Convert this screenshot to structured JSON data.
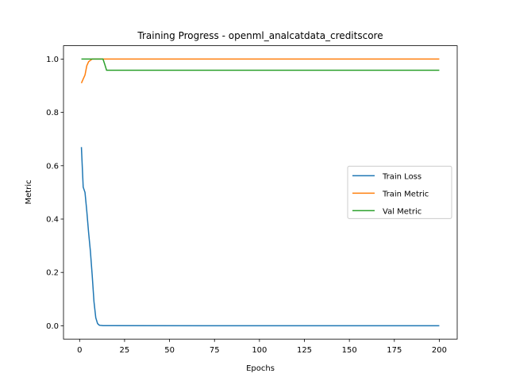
{
  "chart_data": {
    "type": "line",
    "title": "Training Progress - openml_analcatdata_creditscore",
    "x_label": "Epochs",
    "y_label": "Metric",
    "x": [
      1,
      2,
      3,
      4,
      5,
      6,
      7,
      8,
      9,
      10,
      11,
      12,
      13,
      14,
      15,
      200
    ],
    "series": [
      {
        "name": "Train Loss",
        "color": "#1f77b4",
        "values": [
          0.67,
          0.52,
          0.5,
          0.43,
          0.35,
          0.28,
          0.19,
          0.09,
          0.03,
          0.008,
          0.002,
          0.001,
          0.0005,
          0.0004,
          0.0003,
          0.0001
        ]
      },
      {
        "name": "Train Metric",
        "color": "#ff7f0e",
        "values": [
          0.91,
          0.925,
          0.94,
          0.975,
          0.99,
          0.995,
          1,
          1,
          1,
          1,
          1,
          1,
          1,
          1,
          1,
          1
        ]
      },
      {
        "name": "Val Metric",
        "color": "#2ca02c",
        "values": [
          1,
          1,
          1,
          1,
          1,
          1,
          1,
          1,
          1,
          1,
          1,
          1,
          1,
          0.98,
          0.958,
          0.958
        ]
      }
    ],
    "xlim": [
      -8.95,
      209.95
    ],
    "xticks": [
      0,
      25,
      50,
      75,
      100,
      125,
      150,
      175,
      200
    ],
    "ylim": [
      -0.05,
      1.05
    ],
    "yticks": [
      {
        "value": 0,
        "label": "0.0"
      },
      {
        "value": 0.2,
        "label": "0.2"
      },
      {
        "value": 0.4,
        "label": "0.4"
      },
      {
        "value": 0.6,
        "label": "0.6"
      },
      {
        "value": 0.8,
        "label": "0.8"
      },
      {
        "value": 1,
        "label": "1.0"
      }
    ],
    "legend": "center right",
    "grid": false
  }
}
